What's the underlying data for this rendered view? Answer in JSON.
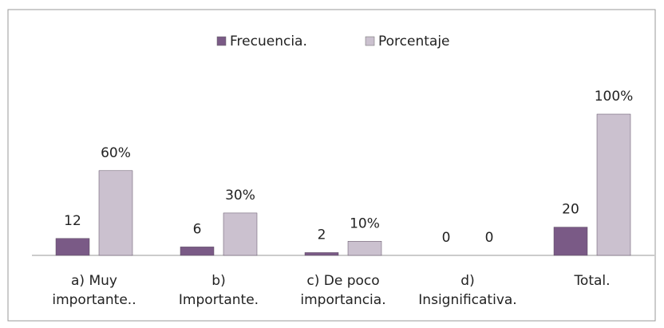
{
  "chart_data": {
    "type": "bar",
    "categories": [
      "a) Muy\nimportante..",
      "b)\nImportante.",
      "c) De poco\nimportancia.",
      "d)\nInsignificativa.",
      "Total."
    ],
    "series": [
      {
        "name": "Frecuencia.",
        "color": "#7a5a86",
        "values": [
          12,
          6,
          2,
          0,
          20
        ]
      },
      {
        "name": "Porcentaje",
        "color": "#cbc1cf",
        "values": [
          60,
          30,
          10,
          0,
          100
        ],
        "value_labels": [
          "60%",
          "30%",
          "10%",
          "0",
          "100%"
        ]
      }
    ],
    "ylim": [
      0,
      100
    ],
    "legend": "top"
  }
}
